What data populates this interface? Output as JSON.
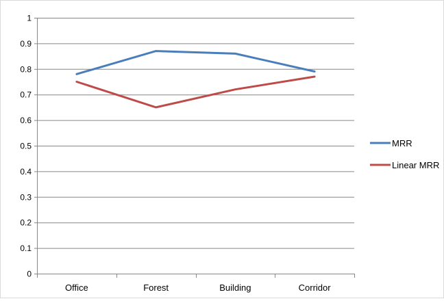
{
  "chart_data": {
    "type": "line",
    "categories": [
      "Office",
      "Forest",
      "Building",
      "Corridor"
    ],
    "series": [
      {
        "name": "MRR",
        "values": [
          0.78,
          0.87,
          0.86,
          0.79
        ],
        "color": "#4a7ebb"
      },
      {
        "name": "Linear MRR",
        "values": [
          0.75,
          0.65,
          0.72,
          0.77
        ],
        "color": "#be4b48"
      }
    ],
    "yticks": [
      "0",
      "0.1",
      "0.2",
      "0.3",
      "0.4",
      "0.5",
      "0.6",
      "0.7",
      "0.8",
      "0.9",
      "1"
    ],
    "ylim": [
      0,
      1
    ],
    "grid": true,
    "legend": "right",
    "gridline_color": "#868686"
  }
}
